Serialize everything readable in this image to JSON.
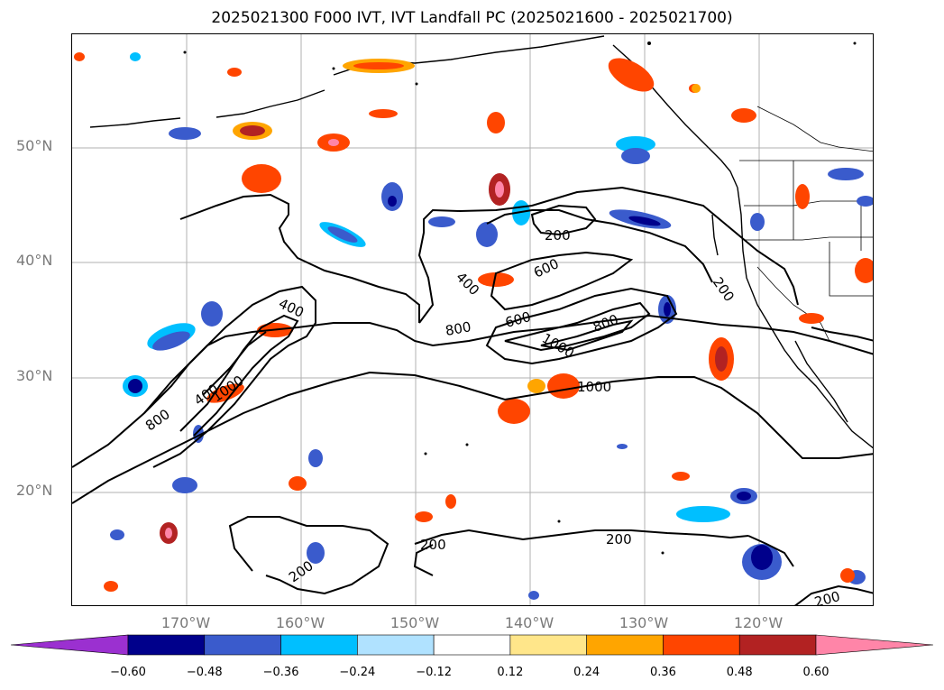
{
  "title": "2025021300 F000 IVT, IVT Landfall PC (2025021600 - 2025021700)",
  "map": {
    "lat_labels": [
      "50°N",
      "40°N",
      "30°N",
      "20°N"
    ],
    "lon_labels": [
      "170°W",
      "160°W",
      "150°W",
      "140°W",
      "130°W",
      "120°W"
    ],
    "contour_labels": [
      "200",
      "400",
      "600",
      "800",
      "1000",
      "400",
      "600",
      "800",
      "1000",
      "200",
      "200",
      "200",
      "200",
      "200",
      "400",
      "800",
      "1000"
    ]
  },
  "colorbar": {
    "ticks": [
      "−0.60",
      "−0.48",
      "−0.36",
      "−0.24",
      "−0.12",
      "0.12",
      "0.24",
      "0.36",
      "0.48",
      "0.60"
    ],
    "colors": [
      "#9b30d0",
      "#00008b",
      "#3a5bcc",
      "#00bfff",
      "#b0e2ff",
      "#ffffff",
      "#ffe68a",
      "#ffa500",
      "#ff4500",
      "#b22222",
      "#ff85a8"
    ]
  }
}
